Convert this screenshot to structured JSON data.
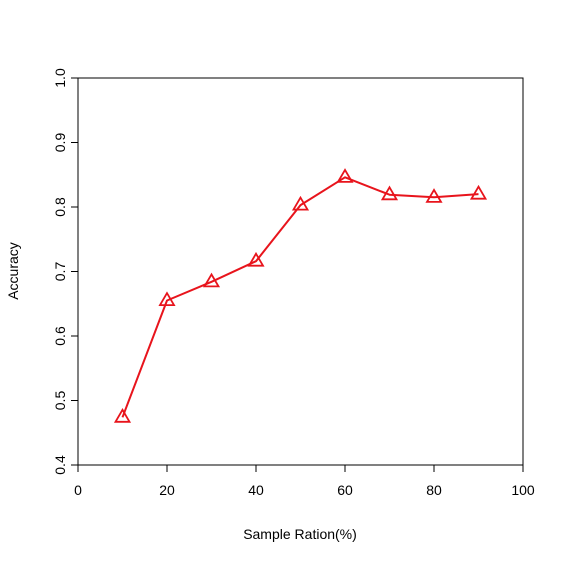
{
  "chart_data": {
    "type": "line",
    "title": "",
    "xlabel": "Sample Ration(%)",
    "ylabel": "Accuracy",
    "xlim": [
      0,
      100
    ],
    "ylim": [
      0.4,
      1.0
    ],
    "xticks": [
      0,
      20,
      40,
      60,
      80,
      100
    ],
    "yticks": [
      0.4,
      0.5,
      0.6,
      0.7,
      0.8,
      0.9,
      1.0
    ],
    "xtick_labels": [
      "0",
      "20",
      "40",
      "60",
      "80",
      "100"
    ],
    "ytick_labels": [
      "0.4",
      "0.5",
      "0.6",
      "0.7",
      "0.8",
      "0.9",
      "1.0"
    ],
    "grid": false,
    "marker": "triangle",
    "line_color": "#e8141c",
    "series": [
      {
        "x": [
          10,
          20,
          30,
          40,
          50,
          60,
          70,
          80,
          90
        ],
        "values": [
          0.474,
          0.655,
          0.684,
          0.716,
          0.803,
          0.846,
          0.819,
          0.815,
          0.82
        ]
      }
    ]
  }
}
